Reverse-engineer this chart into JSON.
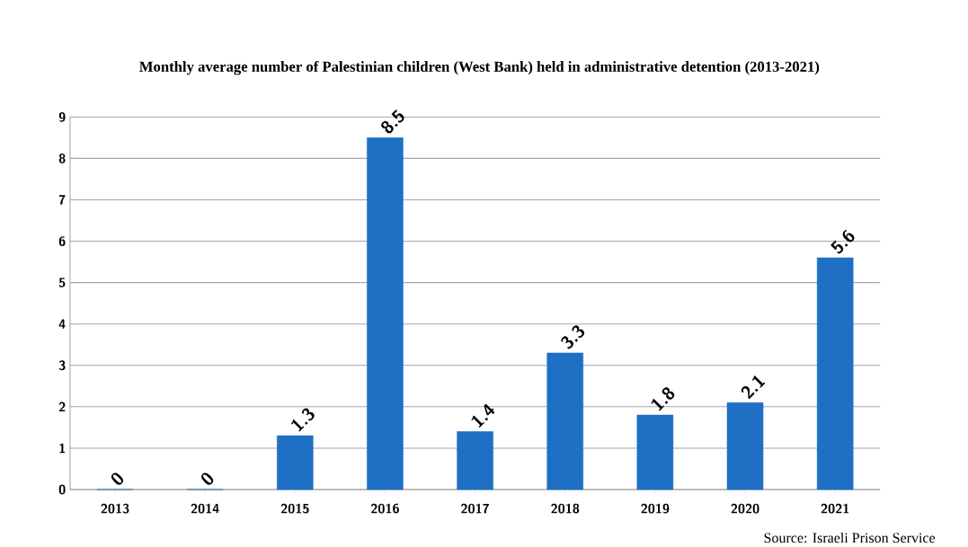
{
  "chart_data": {
    "type": "bar",
    "title": "Monthly average number of Palestinian children (West Bank) held in administrative detention (2013-2021)",
    "categories": [
      "2013",
      "2014",
      "2015",
      "2016",
      "2017",
      "2018",
      "2019",
      "2020",
      "2021"
    ],
    "values": [
      0,
      0,
      1.3,
      8.5,
      1.4,
      3.3,
      1.8,
      2.1,
      5.6
    ],
    "color": "#1f6fc5",
    "ylim": [
      0,
      9
    ],
    "yticks": [
      0,
      1,
      2,
      3,
      4,
      5,
      6,
      7,
      8,
      9
    ],
    "grid": "y",
    "data_labels": true,
    "annotations": [
      "Source: Israeli Prison Service"
    ]
  }
}
